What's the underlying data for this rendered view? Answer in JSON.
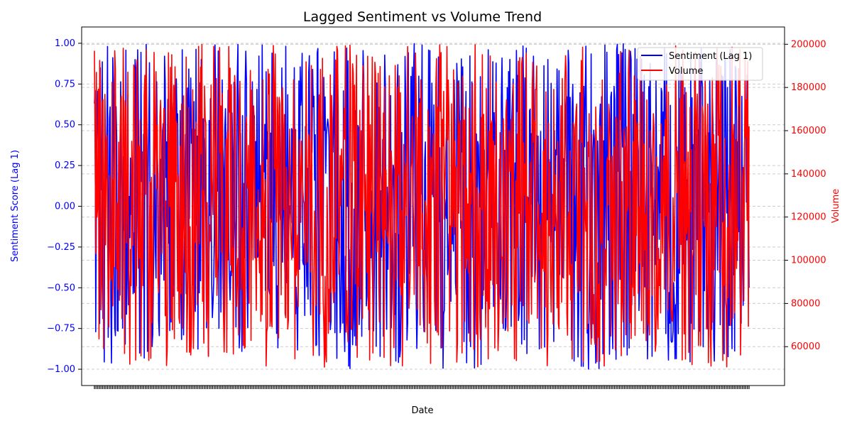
{
  "chart_data": {
    "type": "line",
    "title": "Lagged Sentiment vs Volume Trend",
    "xlabel": "Date",
    "ylabel_left": "Sentiment Score (Lag 1)",
    "ylabel_right": "Volume",
    "ylim_left": [
      -1.1,
      1.1
    ],
    "ylim_right": [
      42000,
      208000
    ],
    "yticks_left": [
      "−1.00",
      "−0.75",
      "−0.50",
      "−0.25",
      "0.00",
      "0.25",
      "0.50",
      "0.75",
      "1.00"
    ],
    "yticks_left_values": [
      -1.0,
      -0.75,
      -0.5,
      -0.25,
      0.0,
      0.25,
      0.5,
      0.75,
      1.0
    ],
    "yticks_right": [
      "60000",
      "80000",
      "100000",
      "120000",
      "140000",
      "160000",
      "180000",
      "200000"
    ],
    "yticks_right_values": [
      60000,
      80000,
      100000,
      120000,
      140000,
      160000,
      180000,
      200000
    ],
    "grid": true,
    "legend_position": "upper right",
    "n_points": 1000,
    "series": [
      {
        "name": "Sentiment (Lag 1)",
        "axis": "left",
        "color": "#0000ff",
        "value_range": [
          -1.0,
          1.0
        ],
        "first_values": [
          0.63,
          0.71,
          -0.77,
          0.05,
          0.54
        ],
        "last_value": -0.5
      },
      {
        "name": "Volume",
        "axis": "right",
        "color": "#ff0000",
        "value_range": [
          50000,
          200000
        ],
        "first_values": [
          197000,
          155000,
          103000,
          187000,
          120000
        ],
        "last_value": 162000
      }
    ],
    "left_axis_color": "#0000ff",
    "right_axis_color": "#ff0000"
  }
}
